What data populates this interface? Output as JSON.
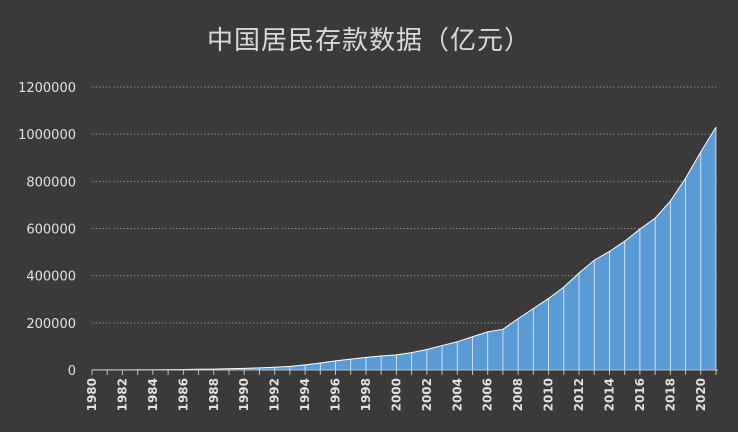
{
  "chart_data": {
    "type": "area",
    "title": "中国居民存款数据（亿元）",
    "xlabel": "",
    "ylabel": "",
    "ylim": [
      0,
      1200000
    ],
    "yticks": [
      "0",
      "200000",
      "400000",
      "600000",
      "800000",
      "1000000",
      "1200000"
    ],
    "grid": true,
    "legend": "none",
    "x": [
      1980,
      1981,
      1982,
      1983,
      1984,
      1985,
      1986,
      1987,
      1988,
      1989,
      1990,
      1991,
      1992,
      1993,
      1994,
      1995,
      1996,
      1997,
      1998,
      1999,
      2000,
      2001,
      2002,
      2003,
      2004,
      2005,
      2006,
      2007,
      2008,
      2009,
      2010,
      2011,
      2012,
      2013,
      2014,
      2015,
      2016,
      2017,
      2018,
      2019,
      2020,
      2021
    ],
    "xtick_labels": [
      "1980",
      "1982",
      "1984",
      "1986",
      "1988",
      "1990",
      "1992",
      "1994",
      "1996",
      "1998",
      "2000",
      "2002",
      "2004",
      "2006",
      "2008",
      "2010",
      "2012",
      "2014",
      "2016",
      "2018",
      "2020"
    ],
    "values": [
      400,
      520,
      680,
      890,
      1210,
      1620,
      2240,
      3080,
      3820,
      5150,
      7120,
      9240,
      11760,
      15200,
      21500,
      29700,
      38500,
      46300,
      53400,
      59600,
      64300,
      73800,
      86900,
      103600,
      119600,
      141100,
      161600,
      172500,
      217900,
      260800,
      303300,
      351200,
      411400,
      465400,
      502500,
      546100,
      597000,
      643800,
      716000,
      813000,
      925000,
      1030000
    ],
    "colors": {
      "background": "#3a3a3a",
      "area_fill": "#5b9bd5",
      "area_line": "#ffffff",
      "grid": "#8a8a8a",
      "axis": "#bfbfbf",
      "tick_text": "#e0e0e0",
      "title_text": "#d9d9d9"
    }
  }
}
